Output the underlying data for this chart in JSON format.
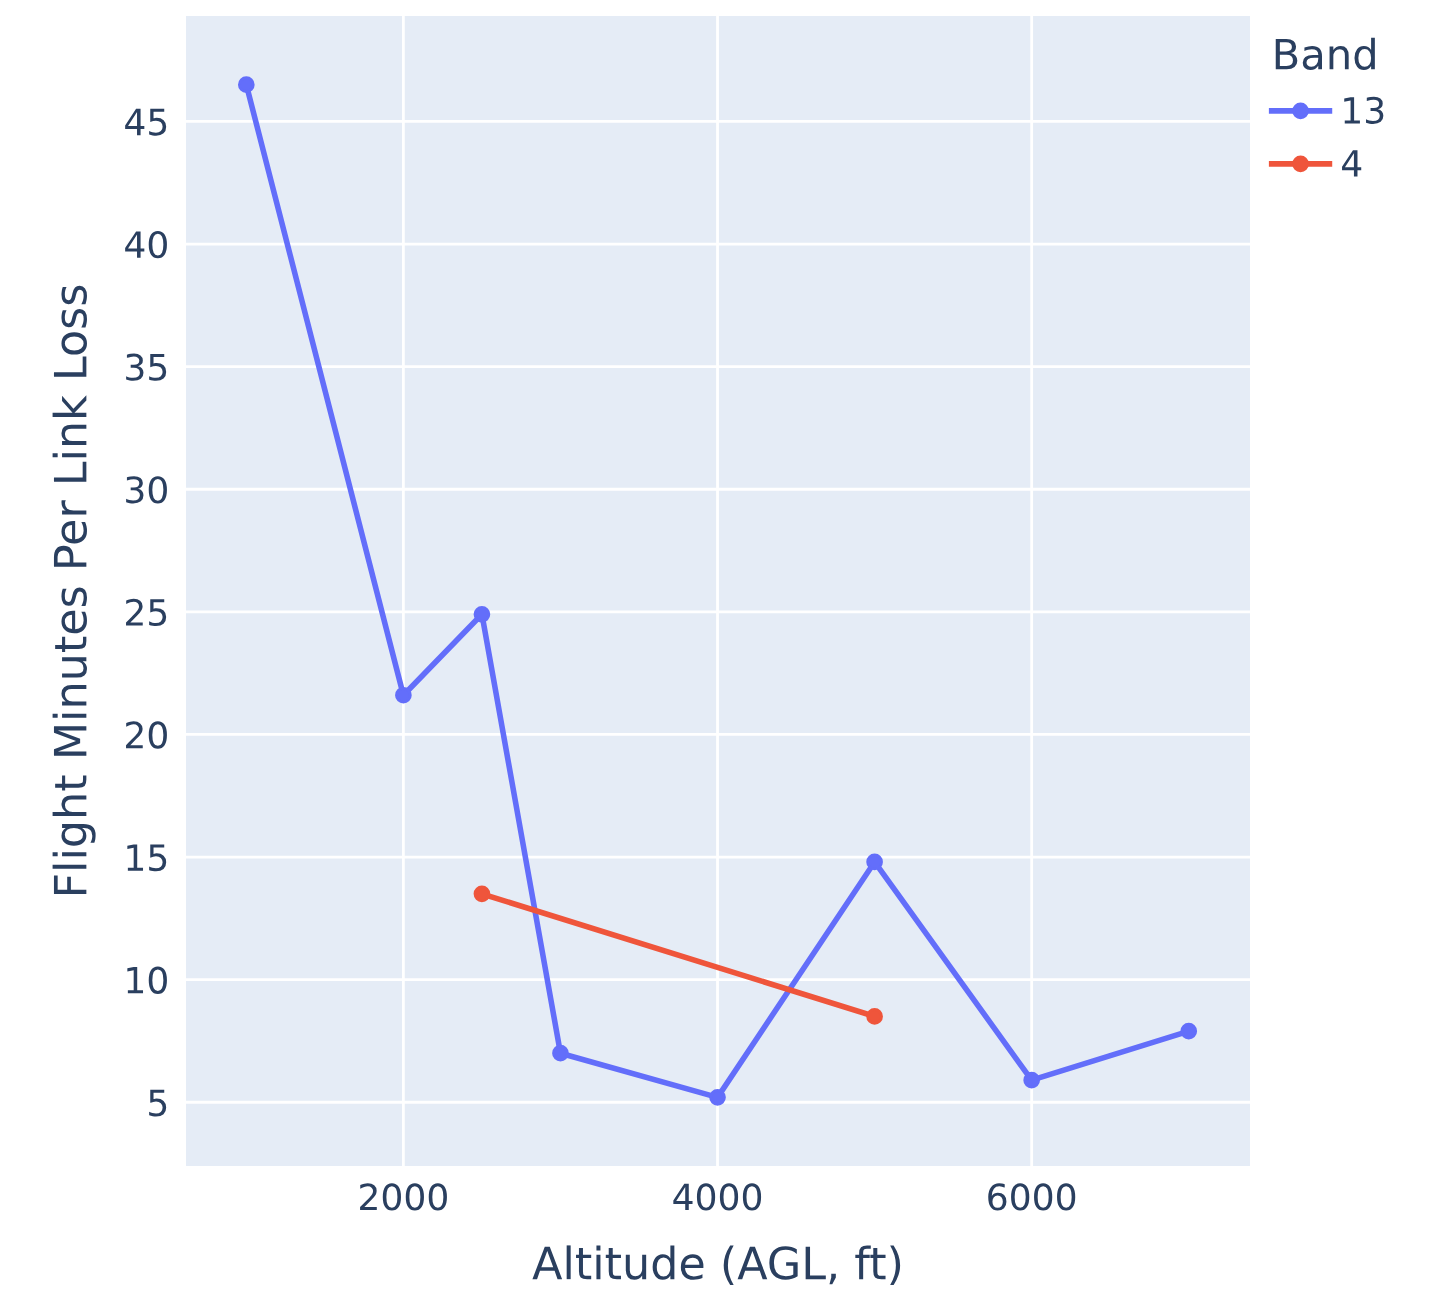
{
  "chart_data": {
    "type": "line",
    "xlabel": "Altitude (AGL, ft)",
    "ylabel": "Flight Minutes Per Link Loss",
    "legend_title": "Band",
    "series": [
      {
        "name": "13",
        "color": "#636efa",
        "x": [
          1000,
          2000,
          2500,
          3000,
          4000,
          5000,
          6000,
          7000
        ],
        "values": [
          46.5,
          21.6,
          24.9,
          7.0,
          5.2,
          14.8,
          5.9,
          7.9
        ]
      },
      {
        "name": "4",
        "color": "#ef553b",
        "x": [
          2500,
          5000
        ],
        "values": [
          13.5,
          8.5
        ]
      }
    ],
    "xlim": [
      616,
      7390
    ],
    "ylim": [
      2.4,
      49.3
    ],
    "xticks": [
      2000,
      4000,
      6000
    ],
    "yticks": [
      5,
      10,
      15,
      20,
      25,
      30,
      35,
      40,
      45
    ],
    "grid": true,
    "legend": "top right",
    "marker": "circle",
    "line_style": "solid"
  }
}
